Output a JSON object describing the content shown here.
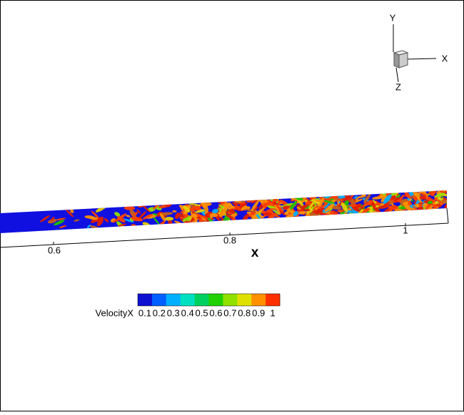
{
  "plot": {
    "axis_title": "x",
    "axis_ticks": [
      "0.6",
      "0.8",
      "1"
    ]
  },
  "triad": {
    "x": "X",
    "y": "Y",
    "z": "Z"
  },
  "legend": {
    "title": "VelocityX",
    "labels": [
      "0.1",
      "0.2",
      "0.3",
      "0.4",
      "0.5",
      "0.6",
      "0.7",
      "0.8",
      "0.9",
      "1"
    ],
    "colors": [
      "#1010d0",
      "#0060ff",
      "#00b0ff",
      "#00e0c0",
      "#00d060",
      "#20d000",
      "#90e000",
      "#e0e000",
      "#ff9000",
      "#ff3000"
    ]
  }
}
